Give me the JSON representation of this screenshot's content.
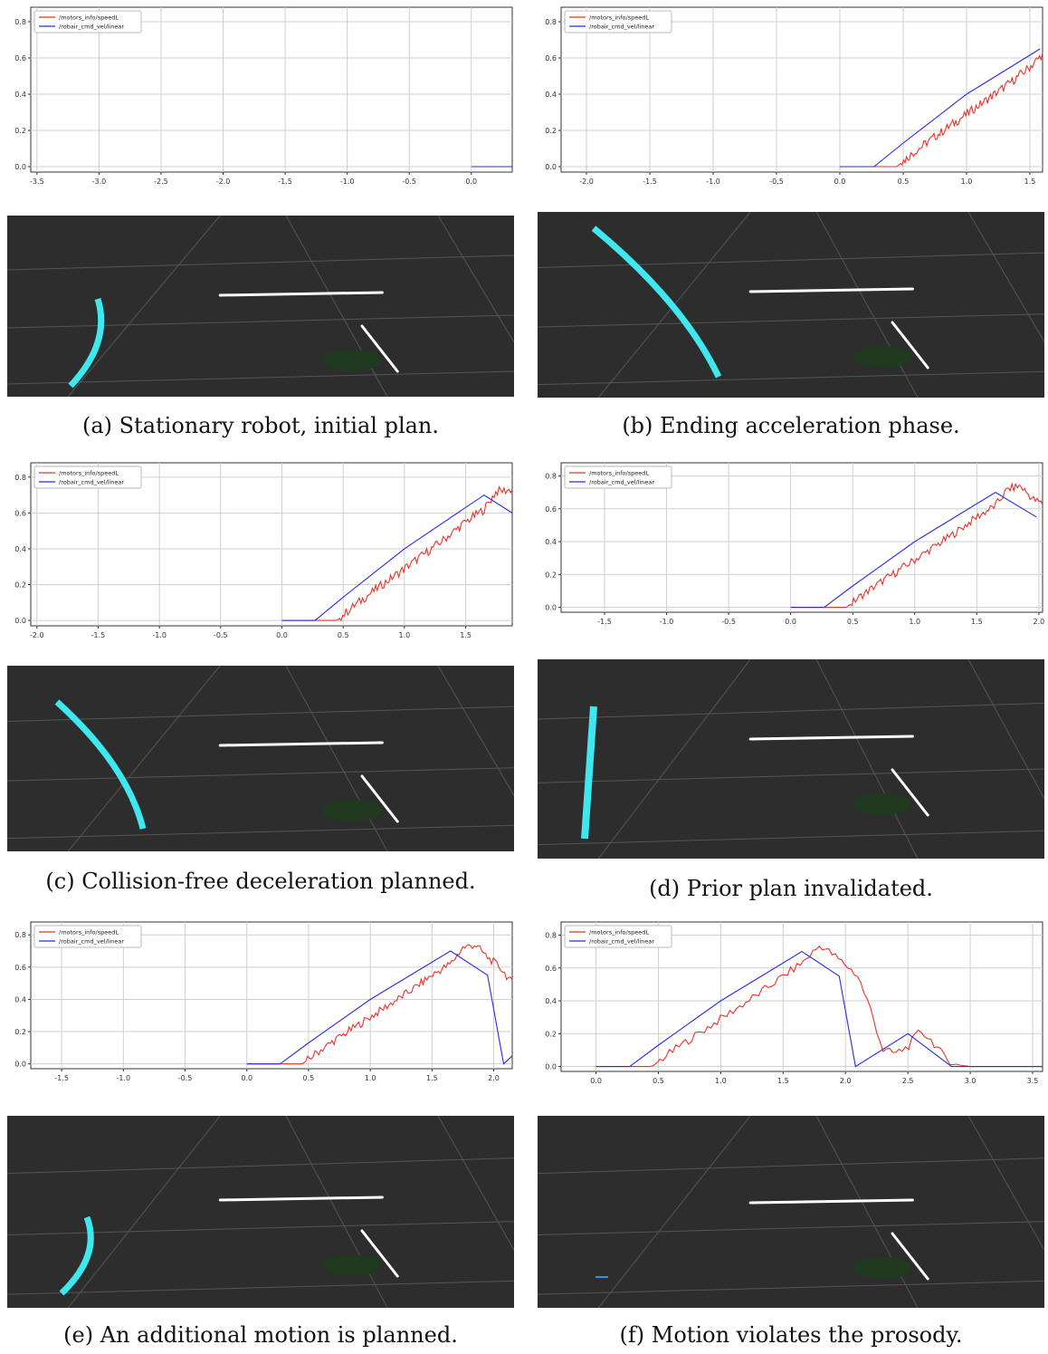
{
  "legend": {
    "series1": "/motors_info/speedL",
    "series2": "/robair_cmd_vel/linear"
  },
  "colors": {
    "speedL": "#e8332a",
    "cmd": "#2a2ae8",
    "scene_bg": "#2d2d2d",
    "plan": "#3fe8ee",
    "arrow": "#1e9be8",
    "points": "#ffffff",
    "goal": "#1f3a1f"
  },
  "captions": [
    "(a) Stationary robot, initial plan.",
    "(b) Ending acceleration phase.",
    "(c) Collision-free deceleration planned.",
    "(d) Prior plan invalidated.",
    "(e) An additional motion is planned.",
    "(f) Motion violates the prosody."
  ],
  "chart_data": [
    {
      "type": "line",
      "xlim": [
        -3.55,
        0.33
      ],
      "ylim": [
        -0.03,
        0.88
      ],
      "xticks": [
        -3.5,
        -3.0,
        -2.5,
        -2.0,
        -1.5,
        -1.0,
        -0.5,
        0.0
      ],
      "yticks": [
        0.0,
        0.2,
        0.4,
        0.6,
        0.8
      ],
      "grid": true,
      "legend_position": "top-left",
      "series": [
        {
          "name": "/motors_info/speedL",
          "x": [
            0.0,
            0.33
          ],
          "y": [
            0.0,
            0.0
          ]
        },
        {
          "name": "/robair_cmd_vel/linear",
          "x": [
            0.0,
            0.33
          ],
          "y": [
            0.0,
            0.0
          ]
        }
      ]
    },
    {
      "type": "line",
      "xlim": [
        -2.2,
        1.6
      ],
      "ylim": [
        -0.03,
        0.88
      ],
      "xticks": [
        -2.0,
        -1.5,
        -1.0,
        -0.5,
        0.0,
        0.5,
        1.0,
        1.5
      ],
      "yticks": [
        0.0,
        0.2,
        0.4,
        0.6,
        0.8
      ],
      "grid": true,
      "legend_position": "top-left",
      "series": [
        {
          "name": "/motors_info/speedL",
          "x": [
            0.0,
            0.45,
            0.55,
            0.7,
            0.9,
            1.1,
            1.3,
            1.5,
            1.6
          ],
          "y": [
            0.0,
            0.0,
            0.06,
            0.14,
            0.24,
            0.34,
            0.44,
            0.55,
            0.62
          ]
        },
        {
          "name": "/robair_cmd_vel/linear",
          "x": [
            0.0,
            0.27,
            0.5,
            1.0,
            1.58
          ],
          "y": [
            0.0,
            0.0,
            0.13,
            0.4,
            0.65
          ]
        }
      ]
    },
    {
      "type": "line",
      "xlim": [
        -2.05,
        1.88
      ],
      "ylim": [
        -0.03,
        0.88
      ],
      "xticks": [
        -2.0,
        -1.5,
        -1.0,
        -0.5,
        0.0,
        0.5,
        1.0,
        1.5
      ],
      "yticks": [
        0.0,
        0.2,
        0.4,
        0.6,
        0.8
      ],
      "grid": true,
      "legend_position": "top-left",
      "series": [
        {
          "name": "/motors_info/speedL",
          "x": [
            0.0,
            0.45,
            0.55,
            0.7,
            0.9,
            1.1,
            1.3,
            1.5,
            1.65,
            1.75,
            1.88
          ],
          "y": [
            0.0,
            0.0,
            0.06,
            0.14,
            0.24,
            0.34,
            0.44,
            0.55,
            0.62,
            0.72,
            0.73
          ]
        },
        {
          "name": "/robair_cmd_vel/linear",
          "x": [
            0.0,
            0.27,
            0.5,
            1.0,
            1.65,
            1.88
          ],
          "y": [
            0.0,
            0.0,
            0.13,
            0.4,
            0.7,
            0.6
          ]
        }
      ]
    },
    {
      "type": "line",
      "xlim": [
        -1.85,
        2.03
      ],
      "ylim": [
        -0.03,
        0.88
      ],
      "xticks": [
        -1.5,
        -1.0,
        -0.5,
        0.0,
        0.5,
        1.0,
        1.5,
        2.0
      ],
      "yticks": [
        0.0,
        0.2,
        0.4,
        0.6,
        0.8
      ],
      "grid": true,
      "legend_position": "top-left",
      "series": [
        {
          "name": "/motors_info/speedL",
          "x": [
            0.0,
            0.45,
            0.55,
            0.7,
            0.9,
            1.1,
            1.3,
            1.5,
            1.65,
            1.75,
            1.85,
            1.95,
            2.03
          ],
          "y": [
            0.0,
            0.0,
            0.06,
            0.14,
            0.24,
            0.34,
            0.44,
            0.55,
            0.62,
            0.72,
            0.74,
            0.66,
            0.63
          ]
        },
        {
          "name": "/robair_cmd_vel/linear",
          "x": [
            0.0,
            0.27,
            0.5,
            1.0,
            1.65,
            1.98
          ],
          "y": [
            0.0,
            0.0,
            0.13,
            0.4,
            0.7,
            0.55
          ]
        }
      ]
    },
    {
      "type": "line",
      "xlim": [
        -1.75,
        2.15
      ],
      "ylim": [
        -0.03,
        0.88
      ],
      "xticks": [
        -1.5,
        -1.0,
        -0.5,
        0.0,
        0.5,
        1.0,
        1.5,
        2.0
      ],
      "yticks": [
        0.0,
        0.2,
        0.4,
        0.6,
        0.8
      ],
      "grid": true,
      "legend_position": "top-left",
      "series": [
        {
          "name": "/motors_info/speedL",
          "x": [
            0.0,
            0.45,
            0.55,
            0.7,
            0.9,
            1.1,
            1.3,
            1.5,
            1.65,
            1.75,
            1.85,
            1.95,
            2.05,
            2.15
          ],
          "y": [
            0.0,
            0.0,
            0.06,
            0.14,
            0.24,
            0.34,
            0.44,
            0.55,
            0.62,
            0.72,
            0.74,
            0.66,
            0.6,
            0.5
          ]
        },
        {
          "name": "/robair_cmd_vel/linear",
          "x": [
            0.0,
            0.27,
            0.5,
            1.0,
            1.65,
            1.95,
            2.08,
            2.15
          ],
          "y": [
            0.0,
            0.0,
            0.13,
            0.4,
            0.7,
            0.55,
            0.0,
            0.05
          ]
        }
      ]
    },
    {
      "type": "line",
      "xlim": [
        -0.28,
        3.58
      ],
      "ylim": [
        -0.03,
        0.88
      ],
      "xticks": [
        0.0,
        0.5,
        1.0,
        1.5,
        2.0,
        2.5,
        3.0,
        3.5
      ],
      "yticks": [
        0.0,
        0.2,
        0.4,
        0.6,
        0.8
      ],
      "grid": true,
      "legend_position": "top-left",
      "series": [
        {
          "name": "/motors_info/speedL",
          "x": [
            0.0,
            0.45,
            0.55,
            0.7,
            0.9,
            1.1,
            1.3,
            1.5,
            1.65,
            1.8,
            2.0,
            2.1,
            2.2,
            2.3,
            2.4,
            2.5,
            2.6,
            2.7,
            2.8,
            2.9,
            3.0,
            3.58
          ],
          "y": [
            0.0,
            0.0,
            0.06,
            0.14,
            0.24,
            0.34,
            0.44,
            0.55,
            0.63,
            0.74,
            0.62,
            0.55,
            0.35,
            0.1,
            0.08,
            0.12,
            0.22,
            0.15,
            0.05,
            0.01,
            0.0,
            0.0
          ]
        },
        {
          "name": "/robair_cmd_vel/linear",
          "x": [
            0.0,
            0.27,
            0.5,
            1.0,
            1.65,
            1.95,
            2.08,
            2.5,
            2.85,
            3.58
          ],
          "y": [
            0.0,
            0.0,
            0.13,
            0.4,
            0.7,
            0.55,
            0.0,
            0.2,
            0.0,
            0.0
          ]
        }
      ]
    }
  ]
}
